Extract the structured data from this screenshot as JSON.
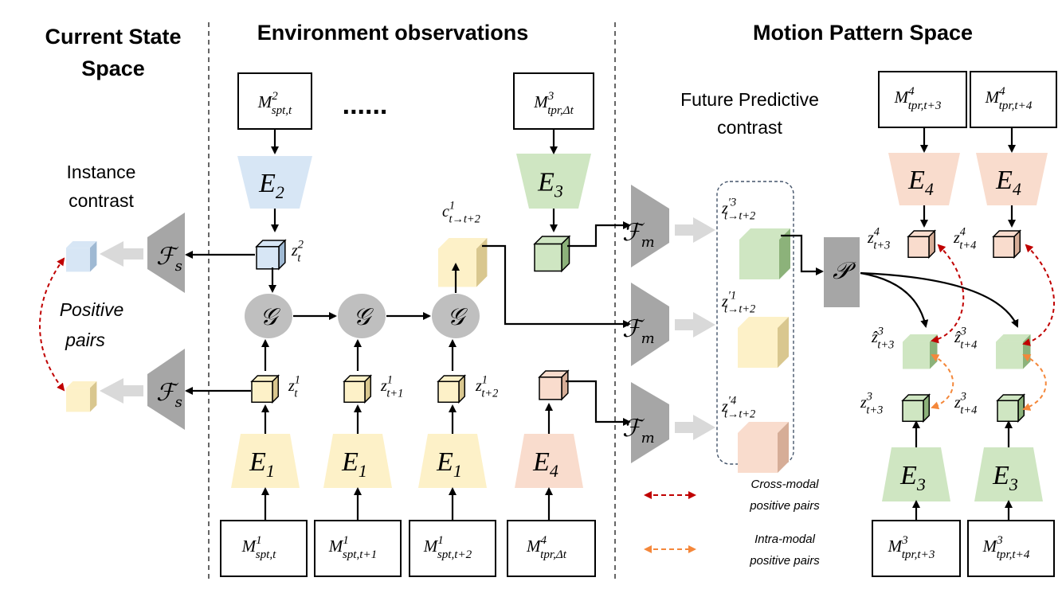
{
  "headers": {
    "current_state_line1": "Current State",
    "current_state_line2": "Space",
    "environment": "Environment observations",
    "motion": "Motion Pattern Space"
  },
  "labels": {
    "instance_contrast_line1": "Instance",
    "instance_contrast_line2": "contrast",
    "positive_pairs_line1": "Positive",
    "positive_pairs_line2": "pairs",
    "future_predictive_line1": "Future Predictive",
    "future_predictive_line2": "contrast",
    "dots": "......"
  },
  "inputs": {
    "top_spt": {
      "base": "M",
      "sup": "2",
      "sub": "spt,t"
    },
    "top_tpr": {
      "base": "M",
      "sup": "3",
      "sub": "tpr,Δt"
    },
    "bottom": [
      {
        "base": "M",
        "sup": "1",
        "sub": "spt,t"
      },
      {
        "base": "M",
        "sup": "1",
        "sub": "spt,t+1"
      },
      {
        "base": "M",
        "sup": "1",
        "sub": "spt,t+2"
      },
      {
        "base": "M",
        "sup": "4",
        "sub": "tpr,Δt"
      }
    ],
    "right_top": [
      {
        "base": "M",
        "sup": "4",
        "sub": "tpr,t+3"
      },
      {
        "base": "M",
        "sup": "4",
        "sub": "tpr,t+4"
      }
    ],
    "right_bottom": [
      {
        "base": "M",
        "sup": "3",
        "sub": "tpr,t+3"
      },
      {
        "base": "M",
        "sup": "3",
        "sub": "tpr,t+4"
      }
    ]
  },
  "encoders": {
    "e1": {
      "base": "E",
      "sub": "1"
    },
    "e2": {
      "base": "E",
      "sub": "2"
    },
    "e3": {
      "base": "E",
      "sub": "3"
    },
    "e4": {
      "base": "E",
      "sub": "4"
    }
  },
  "operators": {
    "g": "𝒢",
    "fs": {
      "base": "ℱ",
      "sub": "s"
    },
    "fm": {
      "base": "ℱ",
      "sub": "m"
    },
    "p": "𝒫"
  },
  "latents": {
    "z2t": {
      "base": "z",
      "sup": "2",
      "sub": "t"
    },
    "z1t": {
      "base": "z",
      "sup": "1",
      "sub": "t"
    },
    "z1t1": {
      "base": "z",
      "sup": "1",
      "sub": "t+1"
    },
    "z1t2": {
      "base": "z",
      "sup": "1",
      "sub": "t+2"
    },
    "c1": {
      "base": "c",
      "sup": "1",
      "sub": "t→t+2"
    },
    "zp3": {
      "base": "z",
      "sup": "′3",
      "sub": "t→t+2"
    },
    "zp1": {
      "base": "z",
      "sup": "′1",
      "sub": "t→t+2"
    },
    "zp4": {
      "base": "z",
      "sup": "′4",
      "sub": "t→t+2"
    },
    "z4t3": {
      "base": "z",
      "sup": "4",
      "sub": "t+3"
    },
    "z4t4": {
      "base": "z",
      "sup": "4",
      "sub": "t+4"
    },
    "zh3t3": {
      "base": "ẑ",
      "sup": "3",
      "sub": "t+3"
    },
    "zh3t4": {
      "base": "ẑ",
      "sup": "3",
      "sub": "t+4"
    },
    "z3t3": {
      "base": "z",
      "sup": "3",
      "sub": "t+3"
    },
    "z3t4": {
      "base": "z",
      "sup": "3",
      "sub": "t+4"
    }
  },
  "legend": {
    "cross_line1": "Cross-modal",
    "cross_line2": "positive pairs",
    "intra_line1": "Intra-modal",
    "intra_line2": "positive pairs"
  },
  "colors": {
    "yellow_fill": "#fdf1c8",
    "yellow_dark": "#d9c78f",
    "blue_fill": "#d7e6f5",
    "blue_dark": "#9fb9d3",
    "green_fill": "#cfe6c2",
    "green_dark": "#8cb27a",
    "peach_fill": "#f9dccd",
    "peach_dark": "#d6ad97",
    "gray": "#a6a6a6",
    "gray_circle": "#bfbfbf",
    "cross_modal": "#c00000",
    "intra_modal": "#f4873a",
    "light_arrow": "#d9d9d9",
    "dash_box": "#44546a"
  }
}
